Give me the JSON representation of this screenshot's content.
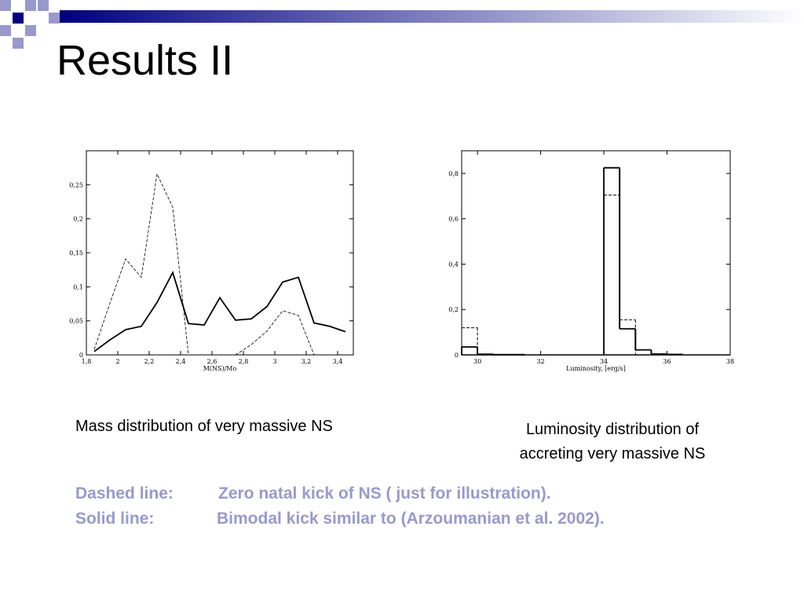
{
  "slide": {
    "title": "Results II"
  },
  "colors": {
    "header_dark": "#000080",
    "header_light": "#ffffff",
    "deco_light": "#9999cc",
    "legend_text": "#9999cc"
  },
  "captions": {
    "left": "Mass distribution of very massive NS",
    "right_line1": "Luminosity distribution of",
    "right_line2": "accreting very massive NS"
  },
  "legend": {
    "dashed_key": "Dashed line:",
    "dashed_text": "Zero natal kick of NS ( just for illustration).",
    "solid_key": "Solid line:",
    "solid_text": "Bimodal kick similar to (Arzoumanian et al. 2002)."
  },
  "chart_data": [
    {
      "type": "line",
      "xlabel": "M(NS)/Mo",
      "ylabel": "",
      "xlim": [
        1.8,
        3.5
      ],
      "ylim": [
        0,
        0.3
      ],
      "x_ticks": [
        "1,8",
        "2",
        "2,2",
        "2,4",
        "2,6",
        "2,8",
        "3",
        "3,2",
        "3,4"
      ],
      "y_ticks": [
        "0",
        "0,05",
        "0,1",
        "0,15",
        "0,2",
        "0,25"
      ],
      "series": [
        {
          "style": "solid",
          "x": [
            1.85,
            1.95,
            2.05,
            2.15,
            2.25,
            2.35,
            2.45,
            2.55,
            2.65,
            2.75,
            2.85,
            2.95,
            3.05,
            3.15,
            3.25,
            3.35,
            3.45
          ],
          "y": [
            0.005,
            0.022,
            0.037,
            0.042,
            0.077,
            0.121,
            0.046,
            0.044,
            0.084,
            0.051,
            0.053,
            0.071,
            0.107,
            0.114,
            0.047,
            0.042,
            0.034
          ]
        },
        {
          "style": "dashed",
          "x": [
            1.85,
            1.95,
            2.05,
            2.15,
            2.25,
            2.35,
            2.45,
            2.55,
            2.65,
            2.75,
            2.85,
            2.95,
            3.05,
            3.15,
            3.25
          ],
          "y": [
            0.008,
            0.076,
            0.141,
            0.114,
            0.266,
            0.217,
            0.0,
            0.0,
            0.0,
            0.0,
            0.015,
            0.035,
            0.065,
            0.058,
            0.0
          ]
        }
      ]
    },
    {
      "type": "bar",
      "xlabel": "Luminosity, [erg/s]",
      "ylabel": "",
      "xlim": [
        29.5,
        38
      ],
      "ylim": [
        0,
        0.9
      ],
      "x_ticks": [
        "30",
        "32",
        "34",
        "36",
        "38"
      ],
      "y_ticks": [
        "0",
        "0,2",
        "0,4",
        "0,6",
        "0,8"
      ],
      "bin_edges": [
        29.5,
        30.0,
        30.5,
        31.0,
        31.5,
        32.0,
        32.5,
        33.0,
        33.5,
        34.0,
        34.5,
        35.0,
        35.5,
        36.0,
        36.5,
        37.0,
        37.5,
        38.0
      ],
      "series": [
        {
          "style": "solid",
          "values": [
            0.035,
            0.003,
            0.001,
            0.001,
            0,
            0,
            0,
            0,
            0,
            0.825,
            0.115,
            0.022,
            0.004,
            0.002,
            0,
            0,
            0
          ]
        },
        {
          "style": "dashed",
          "values": [
            0.12,
            0,
            0,
            0,
            0,
            0,
            0,
            0,
            0,
            0.705,
            0.155,
            0,
            0,
            0,
            0,
            0,
            0
          ]
        }
      ]
    }
  ]
}
